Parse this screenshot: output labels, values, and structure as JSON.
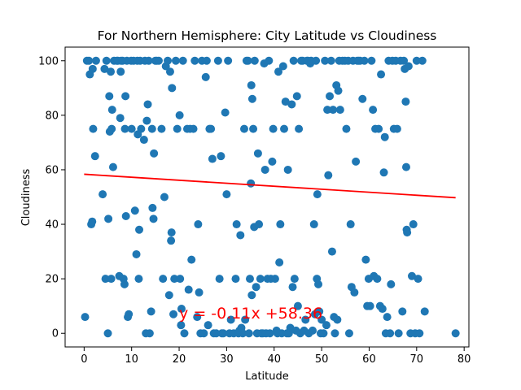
{
  "chart_data": {
    "type": "scatter",
    "title": "For Northern Hemisphere: City Latitude vs Cloudiness",
    "xlabel": "Latitude",
    "ylabel": "Cloudiness",
    "xlim": [
      -4,
      81
    ],
    "ylim": [
      -5,
      105
    ],
    "xticks": [
      0,
      10,
      20,
      30,
      40,
      50,
      60,
      70,
      80
    ],
    "yticks": [
      0,
      20,
      40,
      60,
      80,
      100
    ],
    "grid": false,
    "legend": "none",
    "point_color": "#1f77b4",
    "regression": {
      "equation_label": "y = -0.11x +58.36",
      "slope": -0.11,
      "intercept": 58.36,
      "x_range": [
        0,
        78.2
      ],
      "color": "#ff0000",
      "label_position_data": [
        20,
        5.5
      ]
    },
    "points": [
      [
        0.2,
        6
      ],
      [
        0.6,
        100
      ],
      [
        1.0,
        100
      ],
      [
        1.2,
        95
      ],
      [
        1.5,
        40
      ],
      [
        1.7,
        41
      ],
      [
        1.8,
        97
      ],
      [
        1.9,
        75
      ],
      [
        2.3,
        65
      ],
      [
        2.5,
        100
      ],
      [
        3.9,
        51
      ],
      [
        4.3,
        97
      ],
      [
        4.5,
        20
      ],
      [
        4.7,
        100
      ],
      [
        5.0,
        0
      ],
      [
        5.1,
        42
      ],
      [
        5.3,
        87
      ],
      [
        5.4,
        74
      ],
      [
        5.6,
        96
      ],
      [
        5.7,
        20
      ],
      [
        5.8,
        75
      ],
      [
        5.9,
        82
      ],
      [
        6.1,
        61
      ],
      [
        6.3,
        100
      ],
      [
        6.9,
        100
      ],
      [
        7.1,
        100
      ],
      [
        7.4,
        21
      ],
      [
        7.6,
        79
      ],
      [
        7.7,
        96
      ],
      [
        7.8,
        100
      ],
      [
        8.1,
        100
      ],
      [
        8.3,
        20
      ],
      [
        8.5,
        18
      ],
      [
        8.6,
        75
      ],
      [
        8.7,
        87
      ],
      [
        8.8,
        43
      ],
      [
        9.0,
        100
      ],
      [
        9.2,
        6
      ],
      [
        9.4,
        7
      ],
      [
        9.9,
        100
      ],
      [
        10.0,
        75
      ],
      [
        10.4,
        100
      ],
      [
        10.7,
        45
      ],
      [
        11.0,
        29
      ],
      [
        11.2,
        100
      ],
      [
        11.3,
        73
      ],
      [
        11.5,
        20
      ],
      [
        11.6,
        38
      ],
      [
        11.8,
        100
      ],
      [
        12.0,
        75
      ],
      [
        12.6,
        71
      ],
      [
        12.8,
        100
      ],
      [
        13.0,
        0
      ],
      [
        13.2,
        78
      ],
      [
        13.4,
        84
      ],
      [
        13.6,
        100
      ],
      [
        13.8,
        0
      ],
      [
        14.1,
        8
      ],
      [
        14.3,
        75
      ],
      [
        14.4,
        46
      ],
      [
        14.6,
        42
      ],
      [
        14.7,
        66
      ],
      [
        15.0,
        100
      ],
      [
        15.3,
        100
      ],
      [
        15.7,
        100
      ],
      [
        16.3,
        75
      ],
      [
        16.6,
        20
      ],
      [
        16.9,
        50
      ],
      [
        17.2,
        98
      ],
      [
        17.6,
        100
      ],
      [
        17.9,
        14
      ],
      [
        18.1,
        96
      ],
      [
        18.3,
        34
      ],
      [
        18.4,
        37
      ],
      [
        18.5,
        90
      ],
      [
        18.8,
        7
      ],
      [
        19.0,
        20
      ],
      [
        19.3,
        100
      ],
      [
        19.6,
        75
      ],
      [
        20.1,
        80
      ],
      [
        20.2,
        20
      ],
      [
        20.4,
        3
      ],
      [
        20.5,
        9
      ],
      [
        20.8,
        100
      ],
      [
        21.1,
        0
      ],
      [
        21.7,
        75
      ],
      [
        22.0,
        16
      ],
      [
        22.3,
        75
      ],
      [
        22.6,
        27
      ],
      [
        23.0,
        75
      ],
      [
        23.3,
        100
      ],
      [
        23.8,
        6
      ],
      [
        24.0,
        40
      ],
      [
        24.2,
        15
      ],
      [
        24.5,
        0
      ],
      [
        24.8,
        100
      ],
      [
        25.2,
        0
      ],
      [
        25.6,
        94
      ],
      [
        25.8,
        100
      ],
      [
        26.1,
        3
      ],
      [
        26.4,
        75
      ],
      [
        26.7,
        75
      ],
      [
        27.0,
        64
      ],
      [
        27.3,
        0
      ],
      [
        27.8,
        0
      ],
      [
        28.2,
        100
      ],
      [
        28.5,
        20
      ],
      [
        28.8,
        65
      ],
      [
        29.0,
        0
      ],
      [
        29.3,
        0
      ],
      [
        29.7,
        81
      ],
      [
        30.0,
        51
      ],
      [
        30.3,
        100
      ],
      [
        30.6,
        0
      ],
      [
        30.9,
        5
      ],
      [
        31.5,
        0
      ],
      [
        31.9,
        20
      ],
      [
        32.1,
        40
      ],
      [
        32.5,
        0
      ],
      [
        32.7,
        1
      ],
      [
        32.9,
        36
      ],
      [
        33.1,
        2
      ],
      [
        33.4,
        0
      ],
      [
        33.7,
        75
      ],
      [
        33.9,
        5
      ],
      [
        34.2,
        100
      ],
      [
        34.5,
        100
      ],
      [
        34.7,
        0
      ],
      [
        34.9,
        20
      ],
      [
        35.1,
        55
      ],
      [
        35.2,
        91
      ],
      [
        35.3,
        14
      ],
      [
        35.4,
        86
      ],
      [
        35.6,
        75
      ],
      [
        35.8,
        39
      ],
      [
        35.9,
        100
      ],
      [
        36.2,
        17
      ],
      [
        36.4,
        0
      ],
      [
        36.6,
        66
      ],
      [
        36.8,
        40
      ],
      [
        37.1,
        20
      ],
      [
        37.3,
        0
      ],
      [
        37.6,
        0
      ],
      [
        37.9,
        99
      ],
      [
        38.1,
        60
      ],
      [
        38.3,
        0
      ],
      [
        38.6,
        20
      ],
      [
        38.9,
        100
      ],
      [
        39.1,
        0
      ],
      [
        39.3,
        20
      ],
      [
        39.6,
        63
      ],
      [
        39.8,
        75
      ],
      [
        40.2,
        20
      ],
      [
        40.5,
        1
      ],
      [
        40.7,
        0
      ],
      [
        40.9,
        96
      ],
      [
        41.1,
        26
      ],
      [
        41.3,
        40
      ],
      [
        41.6,
        0
      ],
      [
        41.9,
        98
      ],
      [
        42.1,
        75
      ],
      [
        42.4,
        85
      ],
      [
        42.7,
        0
      ],
      [
        42.9,
        60
      ],
      [
        43.1,
        0
      ],
      [
        43.4,
        2
      ],
      [
        43.7,
        84
      ],
      [
        43.9,
        17
      ],
      [
        44.1,
        100
      ],
      [
        44.3,
        20
      ],
      [
        44.6,
        1
      ],
      [
        44.8,
        87
      ],
      [
        45.0,
        10
      ],
      [
        45.2,
        75
      ],
      [
        45.5,
        0
      ],
      [
        45.7,
        100
      ],
      [
        46.0,
        100
      ],
      [
        46.3,
        1
      ],
      [
        46.6,
        5
      ],
      [
        46.9,
        100
      ],
      [
        47.1,
        100
      ],
      [
        47.3,
        0
      ],
      [
        47.6,
        99
      ],
      [
        47.8,
        100
      ],
      [
        48.1,
        1
      ],
      [
        48.4,
        40
      ],
      [
        48.6,
        7
      ],
      [
        48.8,
        100
      ],
      [
        49.0,
        20
      ],
      [
        49.1,
        51
      ],
      [
        49.3,
        18
      ],
      [
        49.5,
        8
      ],
      [
        49.8,
        0
      ],
      [
        50.0,
        5
      ],
      [
        50.4,
        0
      ],
      [
        50.7,
        100
      ],
      [
        51.0,
        3
      ],
      [
        51.2,
        82
      ],
      [
        51.4,
        58
      ],
      [
        51.7,
        87
      ],
      [
        52.0,
        100
      ],
      [
        52.2,
        30
      ],
      [
        52.4,
        82
      ],
      [
        52.6,
        6
      ],
      [
        52.8,
        0
      ],
      [
        53.1,
        91
      ],
      [
        53.3,
        5
      ],
      [
        53.5,
        89
      ],
      [
        53.7,
        100
      ],
      [
        53.9,
        82
      ],
      [
        54.4,
        100
      ],
      [
        54.9,
        100
      ],
      [
        55.2,
        75
      ],
      [
        55.6,
        100
      ],
      [
        55.8,
        0
      ],
      [
        56.1,
        40
      ],
      [
        56.3,
        17
      ],
      [
        56.6,
        100
      ],
      [
        56.9,
        15
      ],
      [
        57.2,
        63
      ],
      [
        57.5,
        100
      ],
      [
        57.8,
        100
      ],
      [
        58.1,
        100
      ],
      [
        58.6,
        86
      ],
      [
        59.0,
        100
      ],
      [
        59.3,
        27
      ],
      [
        59.6,
        10
      ],
      [
        59.9,
        20
      ],
      [
        60.2,
        10
      ],
      [
        60.5,
        100
      ],
      [
        60.8,
        82
      ],
      [
        61.0,
        21
      ],
      [
        61.3,
        75
      ],
      [
        61.7,
        20
      ],
      [
        62.0,
        75
      ],
      [
        62.3,
        10
      ],
      [
        62.5,
        95
      ],
      [
        62.8,
        9
      ],
      [
        63.1,
        59
      ],
      [
        63.3,
        72
      ],
      [
        63.5,
        0
      ],
      [
        63.8,
        6
      ],
      [
        64.1,
        100
      ],
      [
        64.4,
        0
      ],
      [
        64.6,
        18
      ],
      [
        64.9,
        100
      ],
      [
        65.2,
        75
      ],
      [
        65.6,
        100
      ],
      [
        65.9,
        75
      ],
      [
        66.2,
        0
      ],
      [
        66.6,
        100
      ],
      [
        67.0,
        8
      ],
      [
        67.3,
        100
      ],
      [
        67.5,
        97
      ],
      [
        67.7,
        85
      ],
      [
        67.8,
        61
      ],
      [
        67.9,
        38
      ],
      [
        68.0,
        37
      ],
      [
        68.3,
        98
      ],
      [
        68.7,
        0
      ],
      [
        69.0,
        21
      ],
      [
        69.3,
        40
      ],
      [
        69.7,
        0
      ],
      [
        70.0,
        100
      ],
      [
        70.3,
        20
      ],
      [
        70.6,
        0
      ],
      [
        71.2,
        100
      ],
      [
        71.7,
        8
      ],
      [
        78.2,
        0
      ]
    ]
  }
}
